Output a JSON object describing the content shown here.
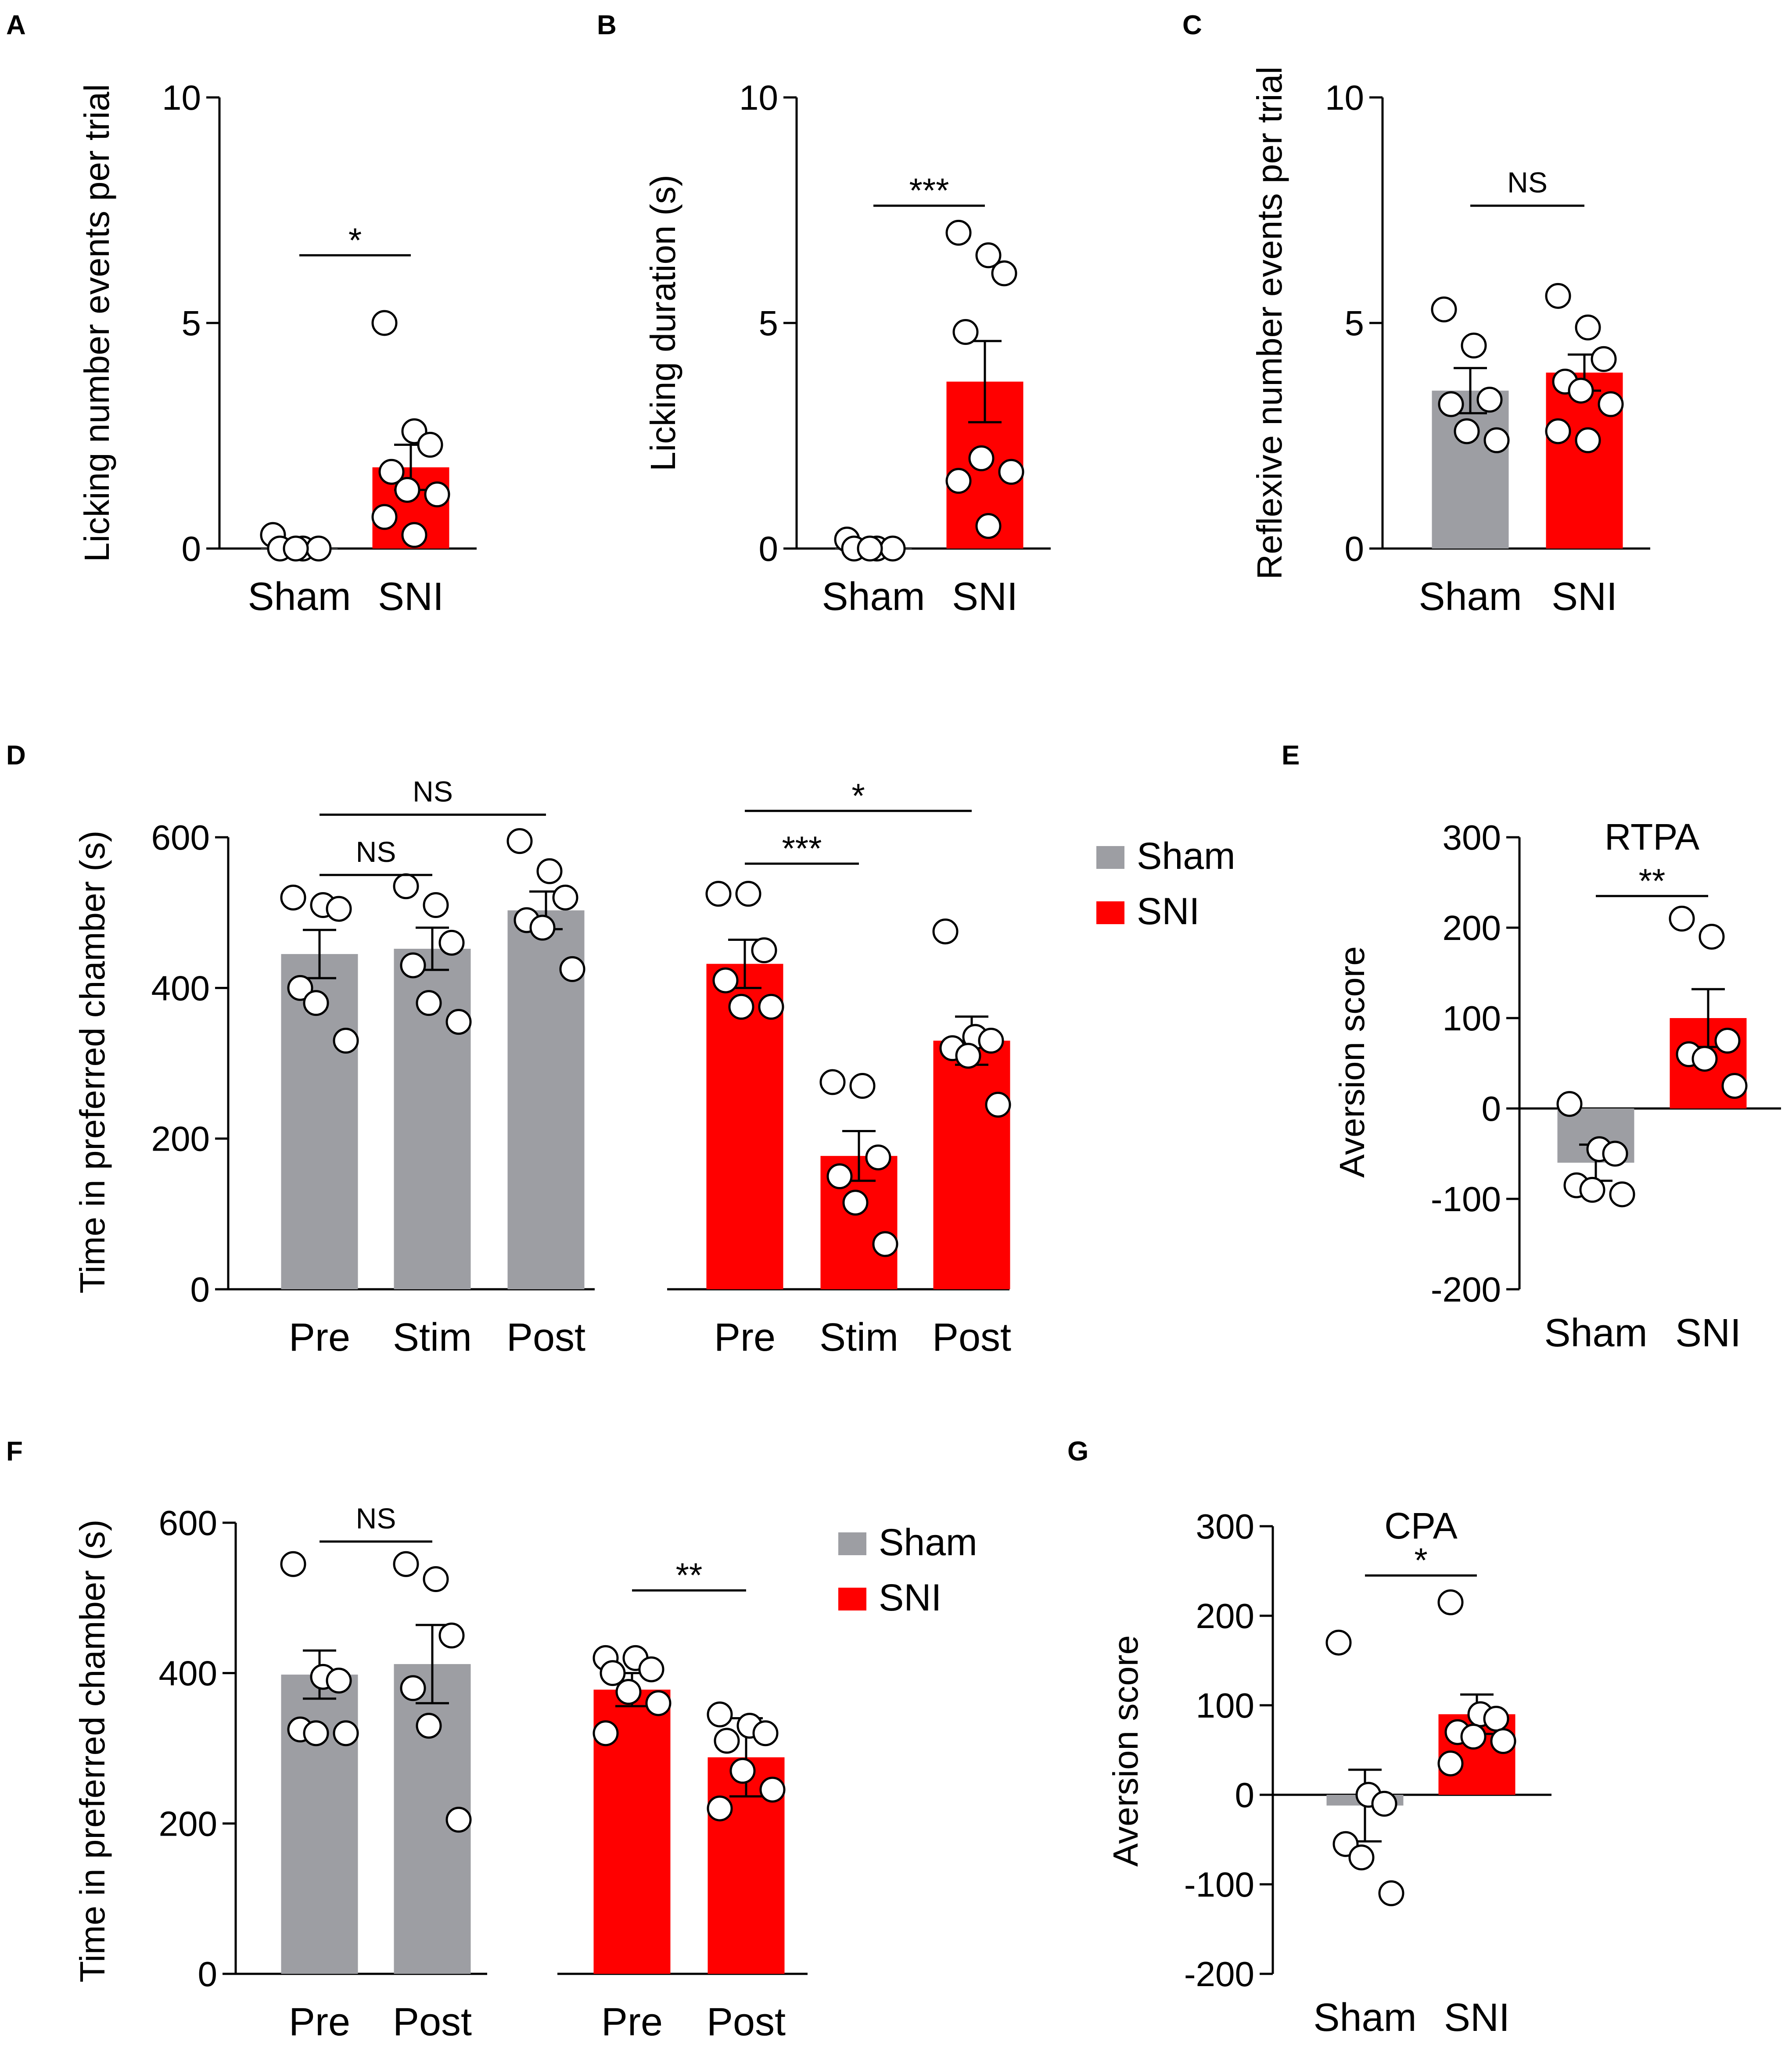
{
  "colors": {
    "sham": "#9d9ea3",
    "sni": "#ff0000",
    "axis": "#000000",
    "dot_fill": "#ffffff"
  },
  "chart_data": [
    {
      "id": "A",
      "type": "bar",
      "panel_label": "A",
      "title": "",
      "ylabel": "Licking number events per trial",
      "ylim": [
        0,
        10
      ],
      "yticks": [
        "0",
        "5",
        "10"
      ],
      "categories": [
        "Sham",
        "SNI"
      ],
      "bar_colors": [
        "sham",
        "sni"
      ],
      "means": [
        0.0,
        1.8
      ],
      "sem": [
        0.05,
        0.5
      ],
      "points": [
        [
          0.3,
          0.0,
          0.0,
          0.0,
          0.0
        ],
        [
          5.0,
          2.6,
          2.3,
          1.7,
          1.3,
          1.2,
          0.7,
          0.3
        ]
      ],
      "significance": [
        {
          "from": 0,
          "to": 1,
          "y": 6.5,
          "label": "*"
        }
      ]
    },
    {
      "id": "B",
      "type": "bar",
      "panel_label": "B",
      "title": "",
      "ylabel": "Licking duration (s)",
      "ylim": [
        0,
        10
      ],
      "yticks": [
        "0",
        "5",
        "10"
      ],
      "categories": [
        "Sham",
        "SNI"
      ],
      "bar_colors": [
        "sham",
        "sni"
      ],
      "means": [
        0.0,
        3.7
      ],
      "sem": [
        0.05,
        0.9
      ],
      "points": [
        [
          0.2,
          0.0,
          0.0,
          0.0,
          0.0
        ],
        [
          7.0,
          6.5,
          6.1,
          4.8,
          2.0,
          1.7,
          1.5,
          0.5
        ]
      ],
      "significance": [
        {
          "from": 0,
          "to": 1,
          "y": 7.6,
          "label": "***"
        }
      ]
    },
    {
      "id": "C",
      "type": "bar",
      "panel_label": "C",
      "title": "",
      "ylabel": "Reflexive number events per trial",
      "ylim": [
        0,
        10
      ],
      "yticks": [
        "0",
        "5",
        "10"
      ],
      "categories": [
        "Sham",
        "SNI"
      ],
      "bar_colors": [
        "sham",
        "sni"
      ],
      "means": [
        3.5,
        3.9
      ],
      "sem": [
        0.5,
        0.4
      ],
      "points": [
        [
          5.3,
          4.5,
          3.3,
          3.2,
          2.6,
          2.4
        ],
        [
          5.6,
          4.9,
          4.2,
          3.7,
          3.5,
          3.2,
          2.6,
          2.4
        ]
      ],
      "significance": [
        {
          "from": 0,
          "to": 1,
          "y": 7.6,
          "label": "NS"
        }
      ]
    },
    {
      "id": "D",
      "type": "bar",
      "panel_label": "D",
      "title": "",
      "ylabel": "Time in  preferred chamber (s)",
      "ylim": [
        0,
        600
      ],
      "yticks": [
        "0",
        "200",
        "400",
        "600"
      ],
      "categories": [
        "Pre",
        "Stim",
        "Post",
        "Pre",
        "Stim",
        "Post"
      ],
      "bar_colors": [
        "sham",
        "sham",
        "sham",
        "sni",
        "sni",
        "sni"
      ],
      "means": [
        445,
        452,
        503,
        432,
        177,
        330
      ],
      "sem": [
        32,
        28,
        25,
        32,
        33,
        32
      ],
      "points": [
        [
          520,
          510,
          505,
          400,
          380,
          330
        ],
        [
          535,
          510,
          460,
          430,
          380,
          355
        ],
        [
          595,
          555,
          520,
          490,
          480,
          425
        ],
        [
          525,
          525,
          450,
          410,
          375,
          375
        ],
        [
          275,
          270,
          175,
          150,
          115,
          60
        ],
        [
          475,
          335,
          330,
          320,
          310,
          245
        ]
      ],
      "significance": [
        {
          "from": 0,
          "to": 1,
          "y": 550,
          "label": "NS"
        },
        {
          "from": 0,
          "to": 2,
          "y": 630,
          "label": "NS"
        },
        {
          "from": 3,
          "to": 4,
          "y": 565,
          "label": "***"
        },
        {
          "from": 3,
          "to": 5,
          "y": 635,
          "label": "*"
        }
      ]
    },
    {
      "id": "E",
      "type": "bar",
      "panel_label": "E",
      "title": "RTPA",
      "ylabel": "Aversion score",
      "ylim": [
        -200,
        300
      ],
      "yticks": [
        "-200",
        "-100",
        "0",
        "100",
        "200",
        "300"
      ],
      "categories": [
        "Sham",
        "SNI"
      ],
      "bar_colors": [
        "sham",
        "sni"
      ],
      "means": [
        -60,
        100
      ],
      "sem": [
        20,
        32
      ],
      "points": [
        [
          5,
          -45,
          -50,
          -85,
          -90,
          -95
        ],
        [
          210,
          190,
          75,
          60,
          55,
          25
        ]
      ],
      "significance": [
        {
          "from": 0,
          "to": 1,
          "y": 235,
          "label": "**"
        }
      ]
    },
    {
      "id": "F",
      "type": "bar",
      "panel_label": "F",
      "title": "",
      "ylabel": "Time in  preferred chamber (s)",
      "ylim": [
        0,
        600
      ],
      "yticks": [
        "0",
        "200",
        "400",
        "600"
      ],
      "categories": [
        "Pre",
        "Post",
        "Pre",
        "Post"
      ],
      "bar_colors": [
        "sham",
        "sham",
        "sni",
        "sni"
      ],
      "means": [
        398,
        412,
        378,
        288
      ],
      "sem": [
        32,
        52,
        22,
        52
      ],
      "points": [
        [
          545,
          395,
          390,
          325,
          320,
          320
        ],
        [
          545,
          525,
          450,
          380,
          330,
          205
        ],
        [
          420,
          420,
          405,
          400,
          375,
          360,
          320
        ],
        [
          345,
          330,
          320,
          310,
          270,
          245,
          220
        ]
      ],
      "significance": [
        {
          "from": 0,
          "to": 1,
          "y": 575,
          "label": "NS"
        },
        {
          "from": 2,
          "to": 3,
          "y": 510,
          "label": "**"
        }
      ]
    },
    {
      "id": "G",
      "type": "bar",
      "panel_label": "G",
      "title": "CPA",
      "ylabel": "Aversion score",
      "ylim": [
        -200,
        300
      ],
      "yticks": [
        "-200",
        "-100",
        "0",
        "100",
        "200",
        "300"
      ],
      "categories": [
        "Sham",
        "SNI"
      ],
      "bar_colors": [
        "sham",
        "sni"
      ],
      "means": [
        -12,
        90
      ],
      "sem": [
        40,
        22
      ],
      "points": [
        [
          170,
          0,
          -10,
          -55,
          -70,
          -110
        ],
        [
          215,
          90,
          85,
          70,
          65,
          60,
          35
        ]
      ],
      "significance": [
        {
          "from": 0,
          "to": 1,
          "y": 245,
          "label": "*"
        }
      ]
    }
  ],
  "legend": [
    {
      "label": "Sham",
      "color": "sham"
    },
    {
      "label": "SNI",
      "color": "sni"
    }
  ]
}
